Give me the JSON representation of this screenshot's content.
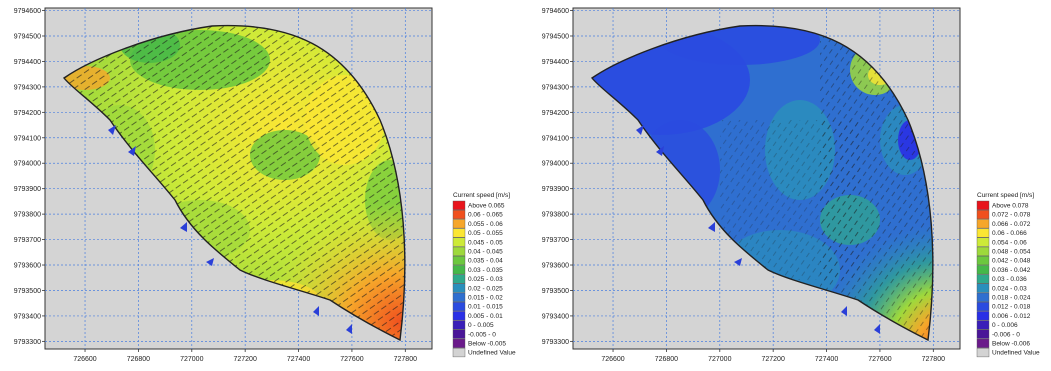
{
  "chart_data": [
    {
      "type": "heatmap",
      "title": "",
      "xlabel": "",
      "ylabel": "",
      "xlim": [
        726450,
        727900
      ],
      "ylim": [
        9793270,
        9794610
      ],
      "x_ticks": [
        "726600",
        "726800",
        "727000",
        "727200",
        "727400",
        "727600",
        "727800"
      ],
      "y_ticks": [
        "9794600",
        "9794500",
        "9794400",
        "9794300",
        "9794200",
        "9794100",
        "9794000",
        "9793900",
        "9793800",
        "9793700",
        "9793600",
        "9793500",
        "9793400",
        "9793300"
      ],
      "grid": true,
      "legend": {
        "title": "Current speed [m/s]",
        "placement": "right",
        "items": [
          {
            "label": "Above  0.065",
            "color": "#e8141c"
          },
          {
            "label": "0.06 -  0.065",
            "color": "#f0501e"
          },
          {
            "label": "0.055 -   0.06",
            "color": "#f6a62a"
          },
          {
            "label": "0.05 -  0.055",
            "color": "#fbe633"
          },
          {
            "label": "0.045 -   0.05",
            "color": "#cdea38"
          },
          {
            "label": "0.04 -  0.045",
            "color": "#9ed93c"
          },
          {
            "label": "0.035 -   0.04",
            "color": "#6cc83e"
          },
          {
            "label": "0.03 -  0.035",
            "color": "#45b849"
          },
          {
            "label": "0.025 -   0.03",
            "color": "#2fa98b"
          },
          {
            "label": "0.02 -  0.025",
            "color": "#2a8fbc"
          },
          {
            "label": "0.015 -   0.02",
            "color": "#2f6fd0"
          },
          {
            "label": "0.01 -  0.015",
            "color": "#2a4be0"
          },
          {
            "label": "0.005 -   0.01",
            "color": "#2a2fe6"
          },
          {
            "label": "0 -  0.005",
            "color": "#3a1fb8"
          },
          {
            "label": "-0.005 -      0",
            "color": "#4a1698"
          },
          {
            "label": "Below  -0.005",
            "color": "#6a1a8a"
          },
          {
            "label": "Undefined Value",
            "color": "#d3d3d3"
          }
        ]
      }
    },
    {
      "type": "heatmap",
      "title": "",
      "xlabel": "",
      "ylabel": "",
      "xlim": [
        726450,
        727900
      ],
      "ylim": [
        9793270,
        9794610
      ],
      "x_ticks": [
        "726600",
        "726800",
        "727000",
        "727200",
        "727400",
        "727600",
        "727800"
      ],
      "y_ticks": [
        "9794600",
        "9794500",
        "9794400",
        "9794300",
        "9794200",
        "9794100",
        "9794000",
        "9793900",
        "9793800",
        "9793700",
        "9793600",
        "9793500",
        "9793400",
        "9793300"
      ],
      "grid": true,
      "legend": {
        "title": "Current speed [m/s]",
        "placement": "right",
        "items": [
          {
            "label": "Above  0.078",
            "color": "#e8141c"
          },
          {
            "label": "0.072 -  0.078",
            "color": "#f0501e"
          },
          {
            "label": "0.066 -  0.072",
            "color": "#f6a62a"
          },
          {
            "label": "0.06 -  0.066",
            "color": "#fbe633"
          },
          {
            "label": "0.054 -    0.06",
            "color": "#cdea38"
          },
          {
            "label": "0.048 -  0.054",
            "color": "#9ed93c"
          },
          {
            "label": "0.042 -  0.048",
            "color": "#6cc83e"
          },
          {
            "label": "0.036 -  0.042",
            "color": "#45b849"
          },
          {
            "label": "0.03 -  0.036",
            "color": "#2fa98b"
          },
          {
            "label": "0.024 -    0.03",
            "color": "#2a8fbc"
          },
          {
            "label": "0.018 -  0.024",
            "color": "#2f6fd0"
          },
          {
            "label": "0.012 -  0.018",
            "color": "#2a4be0"
          },
          {
            "label": "0.006 -  0.012",
            "color": "#2a2fe6"
          },
          {
            "label": "0 -  0.006",
            "color": "#3a1fb8"
          },
          {
            "label": "-0.006 -      0",
            "color": "#4a1698"
          },
          {
            "label": "Below  -0.006",
            "color": "#6a1a8a"
          },
          {
            "label": "Undefined Value",
            "color": "#d3d3d3"
          }
        ]
      }
    }
  ]
}
